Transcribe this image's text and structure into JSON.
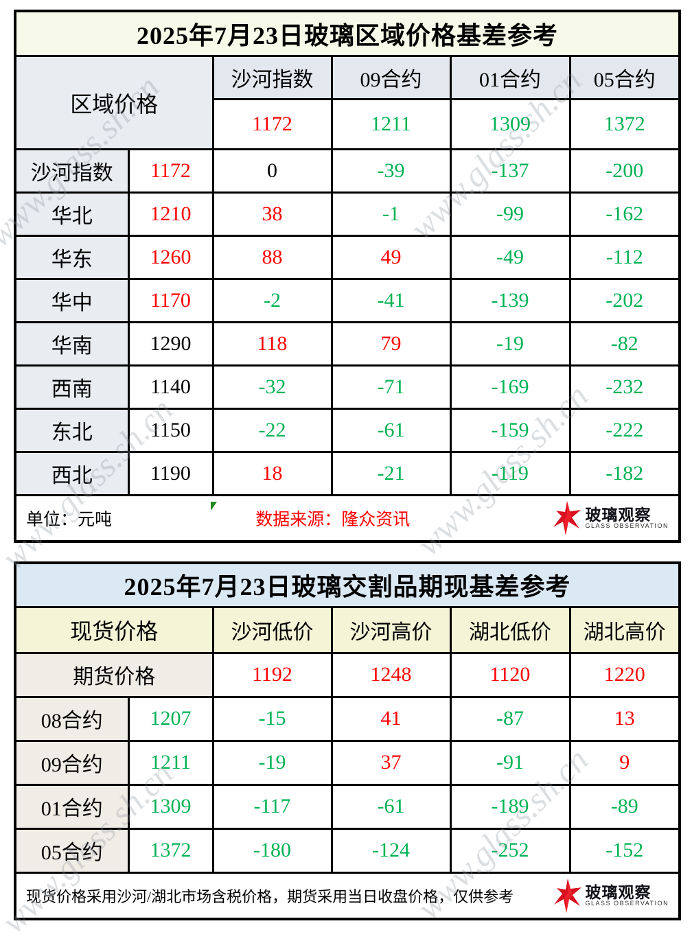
{
  "watermark": {
    "text": "www.glass.sh.cn"
  },
  "logo": {
    "title": "玻璃观察",
    "subtitle": "GLASS OBSERVATION"
  },
  "colors": {
    "up_red": "#fe0000",
    "down_green": "#00b253",
    "table1_title_bg": "#f7fae8",
    "table1_header_bg": "#e3e8ee",
    "table2_title_bg": "#dbe9f5",
    "table2_header_bg": "#f3f5d6"
  },
  "chart_data": [
    {
      "type": "table",
      "title": "2025年7月23日玻璃区域价格基差参考",
      "corner_header": "区域价格",
      "column_headers": [
        "沙河指数",
        "09合约",
        "01合约",
        "05合约"
      ],
      "reference_values": [
        {
          "v": "1172",
          "c": "red"
        },
        {
          "v": "1211",
          "c": "green"
        },
        {
          "v": "1309",
          "c": "green"
        },
        {
          "v": "1372",
          "c": "green"
        }
      ],
      "rows": [
        {
          "label": "沙河指数",
          "price": {
            "v": "1172",
            "c": "red"
          },
          "cells": [
            {
              "v": "0",
              "c": "black"
            },
            {
              "v": "-39",
              "c": "green"
            },
            {
              "v": "-137",
              "c": "green"
            },
            {
              "v": "-200",
              "c": "green"
            }
          ]
        },
        {
          "label": "华北",
          "price": {
            "v": "1210",
            "c": "red"
          },
          "cells": [
            {
              "v": "38",
              "c": "red"
            },
            {
              "v": "-1",
              "c": "green"
            },
            {
              "v": "-99",
              "c": "green"
            },
            {
              "v": "-162",
              "c": "green"
            }
          ]
        },
        {
          "label": "华东",
          "price": {
            "v": "1260",
            "c": "red"
          },
          "cells": [
            {
              "v": "88",
              "c": "red"
            },
            {
              "v": "49",
              "c": "red"
            },
            {
              "v": "-49",
              "c": "green"
            },
            {
              "v": "-112",
              "c": "green"
            }
          ]
        },
        {
          "label": "华中",
          "price": {
            "v": "1170",
            "c": "red"
          },
          "cells": [
            {
              "v": "-2",
              "c": "green"
            },
            {
              "v": "-41",
              "c": "green"
            },
            {
              "v": "-139",
              "c": "green"
            },
            {
              "v": "-202",
              "c": "green"
            }
          ]
        },
        {
          "label": "华南",
          "price": {
            "v": "1290",
            "c": "black"
          },
          "cells": [
            {
              "v": "118",
              "c": "red"
            },
            {
              "v": "79",
              "c": "red"
            },
            {
              "v": "-19",
              "c": "green"
            },
            {
              "v": "-82",
              "c": "green"
            }
          ]
        },
        {
          "label": "西南",
          "price": {
            "v": "1140",
            "c": "black"
          },
          "cells": [
            {
              "v": "-32",
              "c": "green"
            },
            {
              "v": "-71",
              "c": "green"
            },
            {
              "v": "-169",
              "c": "green"
            },
            {
              "v": "-232",
              "c": "green"
            }
          ]
        },
        {
          "label": "东北",
          "price": {
            "v": "1150",
            "c": "black"
          },
          "cells": [
            {
              "v": "-22",
              "c": "green"
            },
            {
              "v": "-61",
              "c": "green"
            },
            {
              "v": "-159",
              "c": "green"
            },
            {
              "v": "-222",
              "c": "green"
            }
          ]
        },
        {
          "label": "西北",
          "price": {
            "v": "1190",
            "c": "black"
          },
          "cells": [
            {
              "v": "18",
              "c": "red"
            },
            {
              "v": "-21",
              "c": "green"
            },
            {
              "v": "-119",
              "c": "green"
            },
            {
              "v": "-182",
              "c": "green"
            }
          ]
        }
      ],
      "unit_note": "单位：元吨",
      "source_note": "数据来源：隆众资讯"
    },
    {
      "type": "table",
      "title": "2025年7月23日玻璃交割品期现基差参考",
      "corner_header": "现货价格",
      "column_headers": [
        "沙河低价",
        "沙河高价",
        "湖北低价",
        "湖北高价"
      ],
      "reference_label": "期货价格",
      "reference_values": [
        {
          "v": "1192",
          "c": "red"
        },
        {
          "v": "1248",
          "c": "red"
        },
        {
          "v": "1120",
          "c": "red"
        },
        {
          "v": "1220",
          "c": "red"
        }
      ],
      "rows": [
        {
          "label": "08合约",
          "price": {
            "v": "1207",
            "c": "green"
          },
          "cells": [
            {
              "v": "-15",
              "c": "green"
            },
            {
              "v": "41",
              "c": "red"
            },
            {
              "v": "-87",
              "c": "green"
            },
            {
              "v": "13",
              "c": "red"
            }
          ]
        },
        {
          "label": "09合约",
          "price": {
            "v": "1211",
            "c": "green"
          },
          "cells": [
            {
              "v": "-19",
              "c": "green"
            },
            {
              "v": "37",
              "c": "red"
            },
            {
              "v": "-91",
              "c": "green"
            },
            {
              "v": "9",
              "c": "red"
            }
          ]
        },
        {
          "label": "01合约",
          "price": {
            "v": "1309",
            "c": "green"
          },
          "cells": [
            {
              "v": "-117",
              "c": "green"
            },
            {
              "v": "-61",
              "c": "green"
            },
            {
              "v": "-189",
              "c": "green"
            },
            {
              "v": "-89",
              "c": "green"
            }
          ]
        },
        {
          "label": "05合约",
          "price": {
            "v": "1372",
            "c": "green"
          },
          "cells": [
            {
              "v": "-180",
              "c": "green"
            },
            {
              "v": "-124",
              "c": "green"
            },
            {
              "v": "-252",
              "c": "green"
            },
            {
              "v": "-152",
              "c": "green"
            }
          ]
        }
      ],
      "footer_note": "现货价格采用沙河/湖北市场含税价格，期货采用当日收盘价格，仅供参考"
    }
  ]
}
